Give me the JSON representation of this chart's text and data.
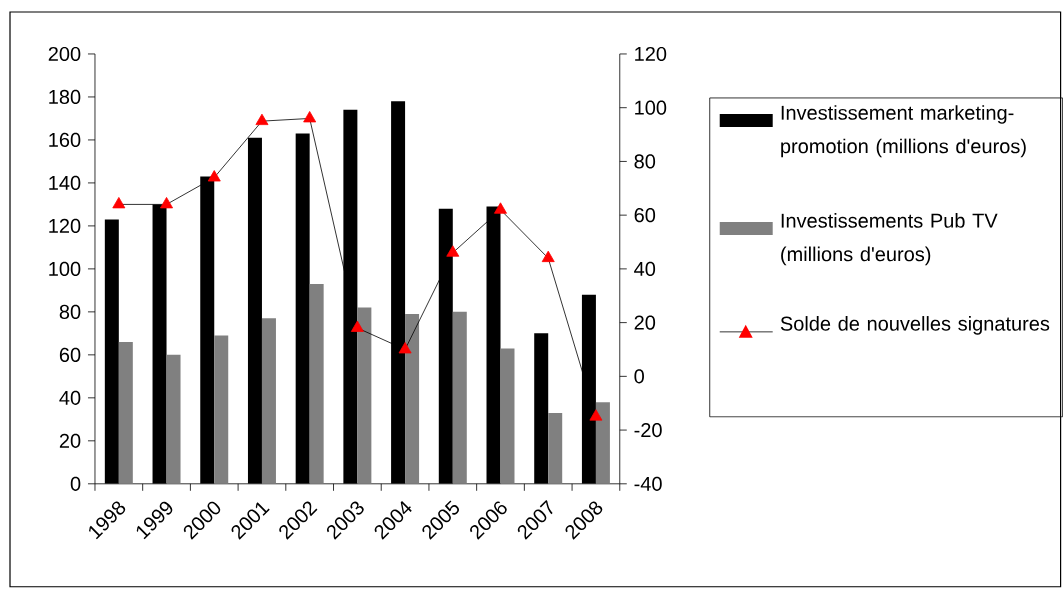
{
  "chart_data": {
    "type": "bar",
    "categories": [
      "1998",
      "1999",
      "2000",
      "2001",
      "2002",
      "2003",
      "2004",
      "2005",
      "2006",
      "2007",
      "2008"
    ],
    "series": [
      {
        "name": "Investissement marketing-promotion (millions d'euros)",
        "color": "#000000",
        "values": [
          123,
          130,
          143,
          161,
          163,
          174,
          178,
          128,
          129,
          70,
          88
        ]
      },
      {
        "name": "Investissements Pub TV (millions d'euros)",
        "color": "#808080",
        "values": [
          66,
          60,
          69,
          77,
          93,
          82,
          79,
          80,
          63,
          33,
          38
        ]
      },
      {
        "name": "Solde de nouvelles signatures",
        "type": "line",
        "axis": "y2",
        "color": "#ff0000",
        "marker": "triangle",
        "values": [
          64,
          64,
          74,
          95,
          96,
          18,
          10,
          46,
          62,
          44,
          -15
        ]
      }
    ],
    "ylim": [
      0,
      200
    ],
    "yticks": [
      0,
      20,
      40,
      60,
      80,
      100,
      120,
      140,
      160,
      180,
      200
    ],
    "y2lim": [
      -40,
      120
    ],
    "y2ticks": [
      -40,
      -20,
      0,
      20,
      40,
      60,
      80,
      100,
      120
    ],
    "grid": false,
    "legend": "right"
  }
}
